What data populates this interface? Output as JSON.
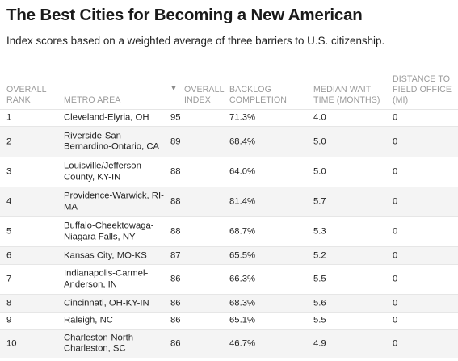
{
  "header": {
    "title": "The Best Cities for Becoming a New American",
    "subtitle": "Index scores based on a weighted average of three barriers to U.S. citizenship."
  },
  "table": {
    "sort_icon": "triangle-down-icon",
    "columns": {
      "rank": [
        "OVERALL",
        "RANK"
      ],
      "metro": [
        "METRO AREA"
      ],
      "index": [
        "OVERALL",
        "INDEX"
      ],
      "backlog": [
        "BACKLOG",
        "COMPLETION"
      ],
      "wait": [
        "MEDIAN WAIT",
        "TIME (MONTHS)"
      ],
      "distance": [
        "DISTANCE TO",
        "FIELD OFFICE",
        "(MI)"
      ]
    },
    "rows": [
      {
        "rank": "1",
        "metro": [
          "Cleveland-Elyria, OH"
        ],
        "index": "95",
        "backlog": "71.3%",
        "wait": "4.0",
        "distance": "0"
      },
      {
        "rank": "2",
        "metro": [
          "Riverside-San",
          "Bernardino-Ontario, CA"
        ],
        "index": "89",
        "backlog": "68.4%",
        "wait": "5.0",
        "distance": "0"
      },
      {
        "rank": "3",
        "metro": [
          "Louisville/Jefferson",
          "County, KY-IN"
        ],
        "index": "88",
        "backlog": "64.0%",
        "wait": "5.0",
        "distance": "0"
      },
      {
        "rank": "4",
        "metro": [
          "Providence-Warwick, RI-",
          "MA"
        ],
        "index": "88",
        "backlog": "81.4%",
        "wait": "5.7",
        "distance": "0"
      },
      {
        "rank": "5",
        "metro": [
          "Buffalo-Cheektowaga-",
          "Niagara Falls, NY"
        ],
        "index": "88",
        "backlog": "68.7%",
        "wait": "5.3",
        "distance": "0"
      },
      {
        "rank": "6",
        "metro": [
          "Kansas City, MO-KS"
        ],
        "index": "87",
        "backlog": "65.5%",
        "wait": "5.2",
        "distance": "0"
      },
      {
        "rank": "7",
        "metro": [
          "Indianapolis-Carmel-",
          "Anderson, IN"
        ],
        "index": "86",
        "backlog": "66.3%",
        "wait": "5.5",
        "distance": "0"
      },
      {
        "rank": "8",
        "metro": [
          "Cincinnati, OH-KY-IN"
        ],
        "index": "86",
        "backlog": "68.3%",
        "wait": "5.6",
        "distance": "0"
      },
      {
        "rank": "9",
        "metro": [
          "Raleigh, NC"
        ],
        "index": "86",
        "backlog": "65.1%",
        "wait": "5.5",
        "distance": "0"
      },
      {
        "rank": "10",
        "metro": [
          "Charleston-North",
          "Charleston, SC"
        ],
        "index": "86",
        "backlog": "46.7%",
        "wait": "4.9",
        "distance": "0"
      }
    ]
  }
}
